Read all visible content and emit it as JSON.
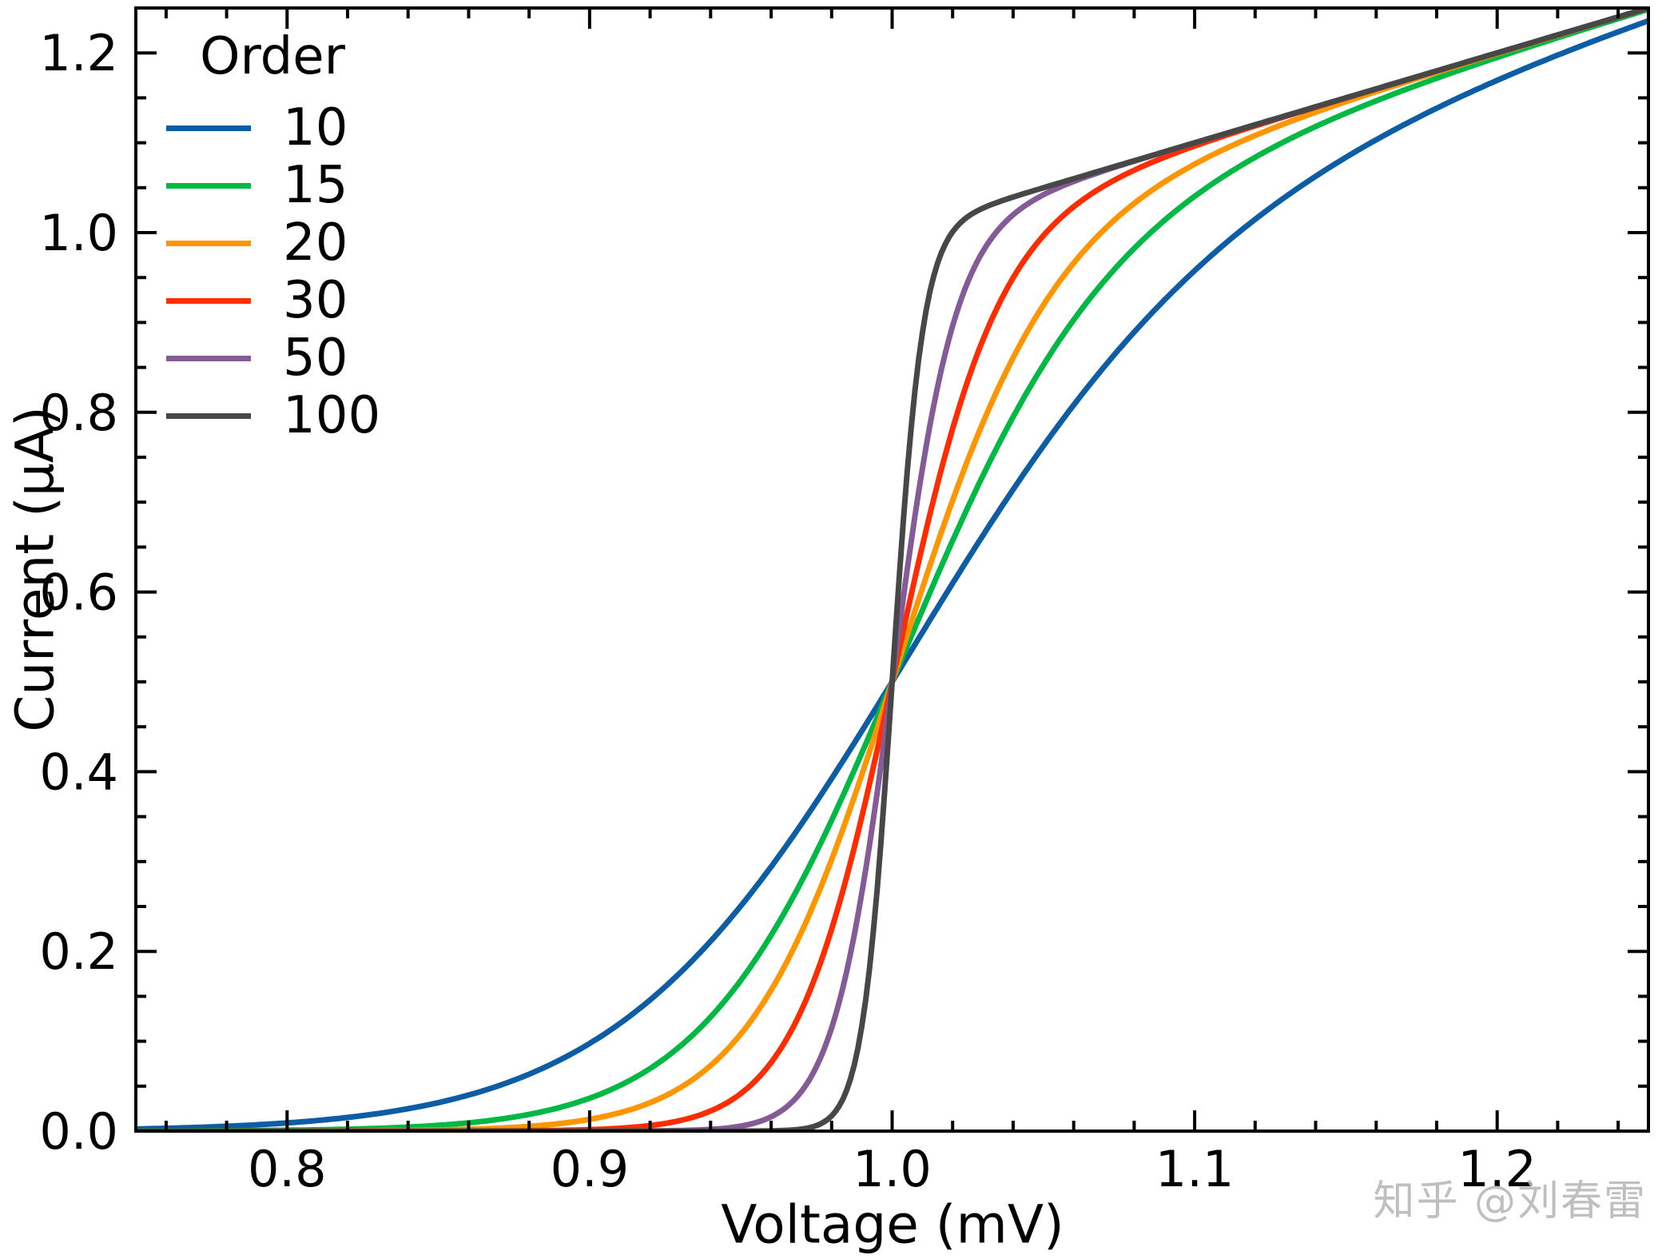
{
  "figure": {
    "background": "#ffffff",
    "watermark": "知乎 @刘春雷"
  },
  "chart_data": {
    "type": "line",
    "title": "",
    "xlabel": "Voltage (mV)",
    "ylabel": "Current (µA)",
    "xlim": [
      0.75,
      1.25
    ],
    "ylim": [
      0.0,
      1.25
    ],
    "x_major_ticks": [
      0.8,
      0.9,
      1.0,
      1.1,
      1.2
    ],
    "x_tick_labels": [
      "0.8",
      "0.9",
      "1.0",
      "1.1",
      "1.2"
    ],
    "x_minor_step": 0.02,
    "y_major_ticks": [
      0.0,
      0.2,
      0.4,
      0.6,
      0.8,
      1.0,
      1.2
    ],
    "y_tick_labels": [
      "0.0",
      "0.2",
      "0.4",
      "0.6",
      "0.8",
      "1.0",
      "1.2"
    ],
    "y_minor_step": 0.05,
    "grid": false,
    "tick_direction": "in",
    "frame": true,
    "legend": {
      "title": "Order",
      "position": "upper-left",
      "frame": false
    },
    "model": "I(V) = V^(2p+1) / (1 + V^(2p)), curves cross at (1.0, 0.5)",
    "sample_x": [
      0.75,
      0.775,
      0.8,
      0.825,
      0.85,
      0.875,
      0.9,
      0.925,
      0.95,
      0.975,
      1.0,
      1.025,
      1.05,
      1.075,
      1.1,
      1.125,
      1.15,
      1.175,
      1.2,
      1.225,
      1.25
    ],
    "series": [
      {
        "name": "10",
        "order": 10,
        "color": "#0C5DA5",
        "values": [
          0.0024,
          0.0047,
          0.0091,
          0.0172,
          0.0317,
          0.0564,
          0.0975,
          0.1607,
          0.2507,
          0.3666,
          0.5,
          0.6366,
          0.7626,
          0.8702,
          0.9577,
          1.0276,
          1.0838,
          1.1301,
          1.1694,
          1.2043,
          1.2357
        ]
      },
      {
        "name": "15",
        "order": 15,
        "color": "#00B945",
        "values": [
          0.0001,
          0.0004,
          0.001,
          0.0026,
          0.0064,
          0.0156,
          0.0366,
          0.0814,
          0.1679,
          0.3108,
          0.5,
          0.6941,
          0.8527,
          0.9648,
          1.0404,
          1.093,
          1.1329,
          1.1658,
          1.195,
          1.2222,
          1.2485
        ]
      },
      {
        "name": "20",
        "order": 20,
        "color": "#FF9500",
        "values": [
          0.0,
          0.0,
          0.0001,
          0.0004,
          0.0013,
          0.0042,
          0.0131,
          0.0392,
          0.1082,
          0.2598,
          0.5,
          0.7469,
          0.9194,
          1.0185,
          1.0762,
          1.115,
          1.1457,
          1.1731,
          1.1992,
          1.2246,
          1.2498
        ]
      },
      {
        "name": "30",
        "order": 30,
        "color": "#FF2C00",
        "values": [
          0.0,
          0.0,
          0.0,
          0.0,
          0.0,
          0.0003,
          0.0016,
          0.0085,
          0.0418,
          0.1751,
          0.5,
          0.8352,
          0.9967,
          1.0612,
          1.0964,
          1.124,
          1.1497,
          1.1749,
          1.2,
          1.225,
          1.25
        ]
      },
      {
        "name": "50",
        "order": 50,
        "color": "#845B97",
        "values": [
          0.0,
          0.0,
          0.0,
          0.0,
          0.0,
          0.0,
          0.0,
          0.0004,
          0.0056,
          0.0719,
          0.5,
          0.945,
          1.0421,
          1.0742,
          1.0999,
          1.125,
          1.15,
          1.175,
          1.2,
          1.225,
          1.25
        ]
      },
      {
        "name": "100",
        "order": 100,
        "color": "#474747",
        "values": [
          0.0,
          0.0,
          0.0,
          0.0,
          0.0,
          0.0,
          0.0,
          0.0,
          0.0,
          0.0061,
          0.5,
          1.0177,
          1.0499,
          1.075,
          1.1,
          1.125,
          1.15,
          1.175,
          1.2,
          1.225,
          1.25
        ]
      }
    ]
  }
}
